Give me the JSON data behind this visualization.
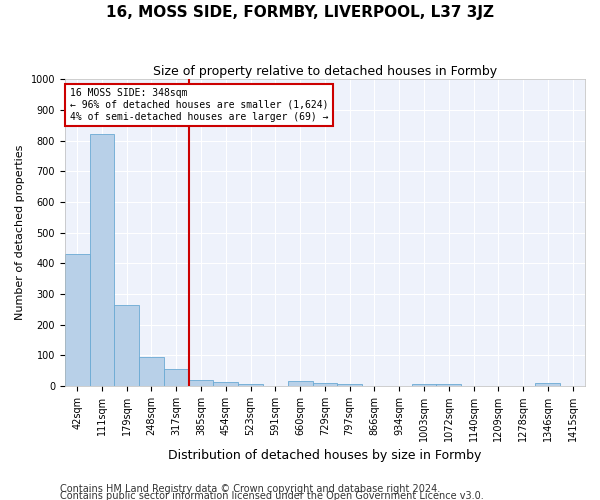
{
  "title": "16, MOSS SIDE, FORMBY, LIVERPOOL, L37 3JZ",
  "subtitle": "Size of property relative to detached houses in Formby",
  "xlabel": "Distribution of detached houses by size in Formby",
  "ylabel": "Number of detached properties",
  "categories": [
    "42sqm",
    "111sqm",
    "179sqm",
    "248sqm",
    "317sqm",
    "385sqm",
    "454sqm",
    "523sqm",
    "591sqm",
    "660sqm",
    "729sqm",
    "797sqm",
    "866sqm",
    "934sqm",
    "1003sqm",
    "1072sqm",
    "1140sqm",
    "1209sqm",
    "1278sqm",
    "1346sqm",
    "1415sqm"
  ],
  "values": [
    430,
    820,
    265,
    95,
    55,
    20,
    13,
    5,
    0,
    15,
    10,
    5,
    0,
    0,
    5,
    5,
    0,
    0,
    0,
    10,
    0
  ],
  "bar_color": "#b8d0e8",
  "bar_edge_color": "#6aaad4",
  "vline_color": "#cc0000",
  "vline_x": 4.5,
  "annotation_text": "16 MOSS SIDE: 348sqm\n← 96% of detached houses are smaller (1,624)\n4% of semi-detached houses are larger (69) →",
  "annotation_box_facecolor": "white",
  "annotation_box_edgecolor": "#cc0000",
  "ylim": [
    0,
    1000
  ],
  "yticks": [
    0,
    100,
    200,
    300,
    400,
    500,
    600,
    700,
    800,
    900,
    1000
  ],
  "background_color": "#eef2fb",
  "grid_color": "#ffffff",
  "title_fontsize": 11,
  "subtitle_fontsize": 9,
  "tick_fontsize": 7,
  "ylabel_fontsize": 8,
  "xlabel_fontsize": 9,
  "ann_fontsize": 7,
  "footer_fontsize": 7,
  "footer1": "Contains HM Land Registry data © Crown copyright and database right 2024.",
  "footer2": "Contains public sector information licensed under the Open Government Licence v3.0."
}
